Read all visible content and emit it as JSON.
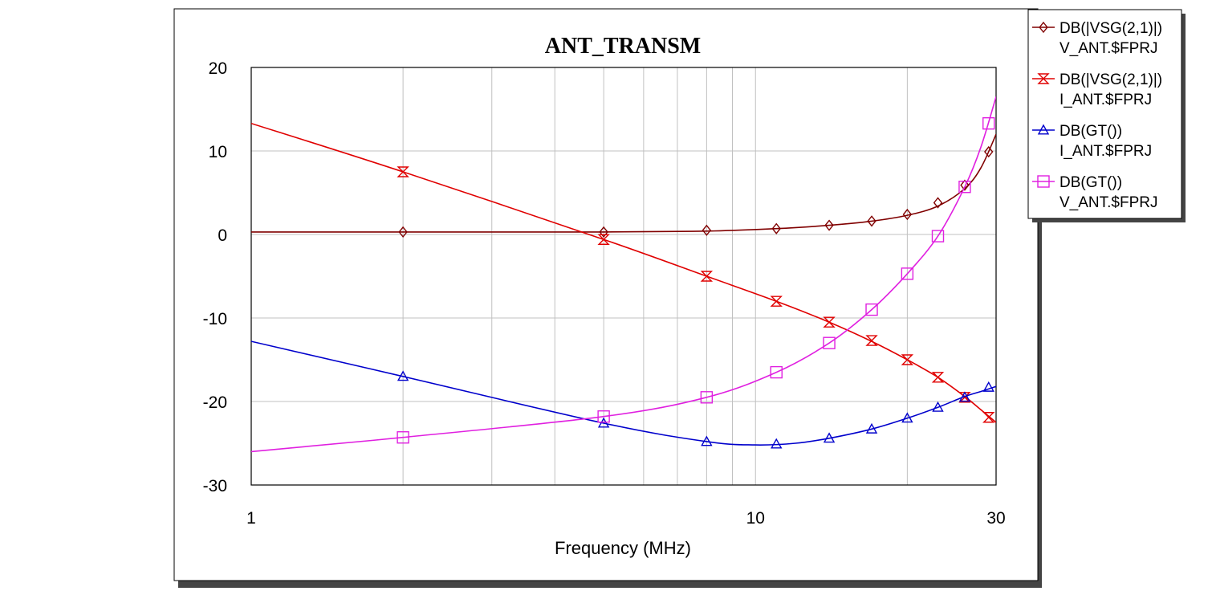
{
  "chart_data": {
    "type": "line",
    "title": "ANT_TRANSM",
    "xlabel": "Frequency (MHz)",
    "ylabel": "",
    "x_scale": "log",
    "xlim": [
      1,
      30
    ],
    "ylim": [
      -30,
      20
    ],
    "x_ticks": [
      1,
      10,
      30
    ],
    "x_tick_labels": [
      "1",
      "10",
      "30"
    ],
    "y_ticks": [
      20,
      10,
      0,
      -10,
      -20,
      -30
    ],
    "y_tick_labels": [
      "20",
      "10",
      "0",
      "-10",
      "-20",
      "-30"
    ],
    "grid": true,
    "legend_position": "outside-right-top",
    "series": [
      {
        "name": "DB(|VSG(2,1)|)",
        "name_line2": "V_ANT.$FPRJ",
        "color": "#800000",
        "marker": "diamond",
        "curve": [
          [
            1,
            0.3
          ],
          [
            2,
            0.3
          ],
          [
            5,
            0.3
          ],
          [
            8,
            0.4
          ],
          [
            11,
            0.7
          ],
          [
            14,
            1.1
          ],
          [
            17,
            1.6
          ],
          [
            20,
            2.3
          ],
          [
            23,
            3.4
          ],
          [
            26,
            5.5
          ],
          [
            28,
            8.0
          ],
          [
            30,
            12.0
          ]
        ],
        "markers": [
          [
            2,
            0.3
          ],
          [
            5,
            0.3
          ],
          [
            8,
            0.5
          ],
          [
            11,
            0.7
          ],
          [
            14,
            1.1
          ],
          [
            17,
            1.6
          ],
          [
            20,
            2.4
          ],
          [
            23,
            3.8
          ],
          [
            26,
            5.9
          ],
          [
            29,
            9.9
          ]
        ]
      },
      {
        "name": "DB(|VSG(2,1)|)",
        "name_line2": "I_ANT.$FPRJ",
        "color": "#e00000",
        "marker": "hourglass",
        "curve": [
          [
            1,
            13.3
          ],
          [
            2,
            7.5
          ],
          [
            5,
            -0.6
          ],
          [
            8,
            -5.0
          ],
          [
            11,
            -8.0
          ],
          [
            14,
            -10.5
          ],
          [
            17,
            -12.8
          ],
          [
            20,
            -15.0
          ],
          [
            23,
            -17.1
          ],
          [
            26,
            -19.4
          ],
          [
            28,
            -21.0
          ],
          [
            30,
            -22.5
          ]
        ],
        "markers": [
          [
            2,
            7.5
          ],
          [
            5,
            -0.6
          ],
          [
            8,
            -5.0
          ],
          [
            11,
            -8.0
          ],
          [
            14,
            -10.5
          ],
          [
            17,
            -12.7
          ],
          [
            20,
            -15.0
          ],
          [
            23,
            -17.1
          ],
          [
            26,
            -19.5
          ],
          [
            29,
            -21.9
          ]
        ]
      },
      {
        "name": "DB(GT())",
        "name_line2": "I_ANT.$FPRJ",
        "color": "#0000cc",
        "marker": "triangle",
        "curve": [
          [
            1,
            -12.8
          ],
          [
            2,
            -17.0
          ],
          [
            5,
            -22.6
          ],
          [
            8,
            -24.8
          ],
          [
            10,
            -25.2
          ],
          [
            12,
            -25.0
          ],
          [
            14,
            -24.4
          ],
          [
            17,
            -23.3
          ],
          [
            20,
            -22.0
          ],
          [
            23,
            -20.7
          ],
          [
            26,
            -19.4
          ],
          [
            28,
            -18.8
          ],
          [
            30,
            -18.2
          ]
        ],
        "markers": [
          [
            2,
            -17.0
          ],
          [
            5,
            -22.6
          ],
          [
            8,
            -24.8
          ],
          [
            11,
            -25.1
          ],
          [
            14,
            -24.4
          ],
          [
            17,
            -23.3
          ],
          [
            20,
            -22.0
          ],
          [
            23,
            -20.7
          ],
          [
            26,
            -19.5
          ],
          [
            29,
            -18.3
          ]
        ]
      },
      {
        "name": "DB(GT())",
        "name_line2": "V_ANT.$FPRJ",
        "color": "#e020e0",
        "marker": "square",
        "curve": [
          [
            1,
            -26.0
          ],
          [
            2,
            -24.3
          ],
          [
            5,
            -21.8
          ],
          [
            8,
            -19.5
          ],
          [
            11,
            -16.5
          ],
          [
            14,
            -13.0
          ],
          [
            17,
            -9.0
          ],
          [
            20,
            -4.7
          ],
          [
            23,
            -0.2
          ],
          [
            26,
            5.7
          ],
          [
            28,
            10.5
          ],
          [
            30,
            16.5
          ]
        ],
        "markers": [
          [
            2,
            -24.3
          ],
          [
            5,
            -21.8
          ],
          [
            8,
            -19.5
          ],
          [
            11,
            -16.5
          ],
          [
            14,
            -13.0
          ],
          [
            17,
            -9.0
          ],
          [
            20,
            -4.7
          ],
          [
            23,
            -0.2
          ],
          [
            26,
            5.7
          ],
          [
            29,
            13.3
          ]
        ]
      }
    ]
  }
}
